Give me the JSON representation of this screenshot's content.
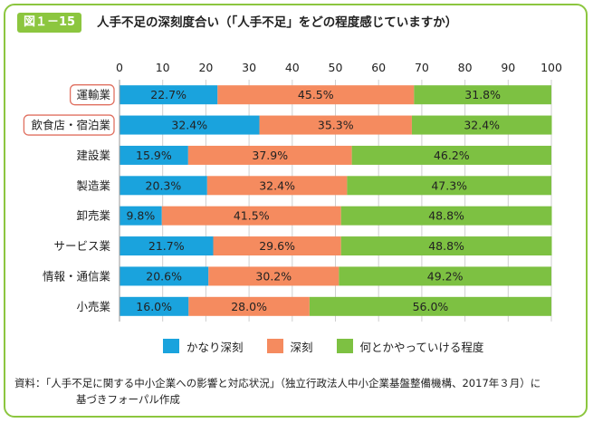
{
  "figure_label": "図１－15",
  "title": "人手不足の深刻度合い（「人手不足」をどの程度感じていますか）",
  "colors": {
    "series": [
      "#1aa3dd",
      "#f58b5f",
      "#7dc142"
    ],
    "frame": "#8cc63f",
    "highlight": "#e07060"
  },
  "chart_data": {
    "type": "bar",
    "orientation": "horizontal",
    "stacked": true,
    "xlim": [
      0,
      100
    ],
    "ticks": [
      "0",
      "10",
      "20",
      "30",
      "40",
      "50",
      "60",
      "70",
      "80",
      "90",
      "100"
    ],
    "tick_values": [
      0,
      10,
      20,
      30,
      40,
      50,
      60,
      70,
      80,
      90,
      100
    ],
    "grid": true,
    "legend_position": "bottom",
    "categories": [
      "運輸業",
      "飲食店・宿泊業",
      "建設業",
      "製造業",
      "卸売業",
      "サービス業",
      "情報・通信業",
      "小売業"
    ],
    "highlighted": [
      true,
      true,
      false,
      false,
      false,
      false,
      false,
      false
    ],
    "series": [
      {
        "name": "かなり深刻",
        "values": [
          22.7,
          32.4,
          15.9,
          20.3,
          9.8,
          21.7,
          20.6,
          16.0
        ],
        "labels": [
          "22.7%",
          "32.4%",
          "15.9%",
          "20.3%",
          "9.8%",
          "21.7%",
          "20.6%",
          "16.0%"
        ]
      },
      {
        "name": "深刻",
        "values": [
          45.5,
          35.3,
          37.9,
          32.4,
          41.5,
          29.6,
          30.2,
          28.0
        ],
        "labels": [
          "45.5%",
          "35.3%",
          "37.9%",
          "32.4%",
          "41.5%",
          "29.6%",
          "30.2%",
          "28.0%"
        ]
      },
      {
        "name": "何とかやっていける程度",
        "values": [
          31.8,
          32.4,
          46.2,
          47.3,
          48.8,
          48.8,
          49.2,
          56.0
        ],
        "labels": [
          "31.8%",
          "32.4%",
          "46.2%",
          "47.3%",
          "48.8%",
          "48.8%",
          "49.2%",
          "56.0%"
        ]
      }
    ]
  },
  "legend": [
    {
      "label": "かなり深刻"
    },
    {
      "label": "深刻"
    },
    {
      "label": "何とかやっていける程度"
    }
  ],
  "source": {
    "line1": "資料：「人手不足に関する中小企業への影響と対応状況」（独立行政法人中小企業基盤整備機構、2017年３月）に",
    "line2": "基づきフォーパル作成"
  }
}
